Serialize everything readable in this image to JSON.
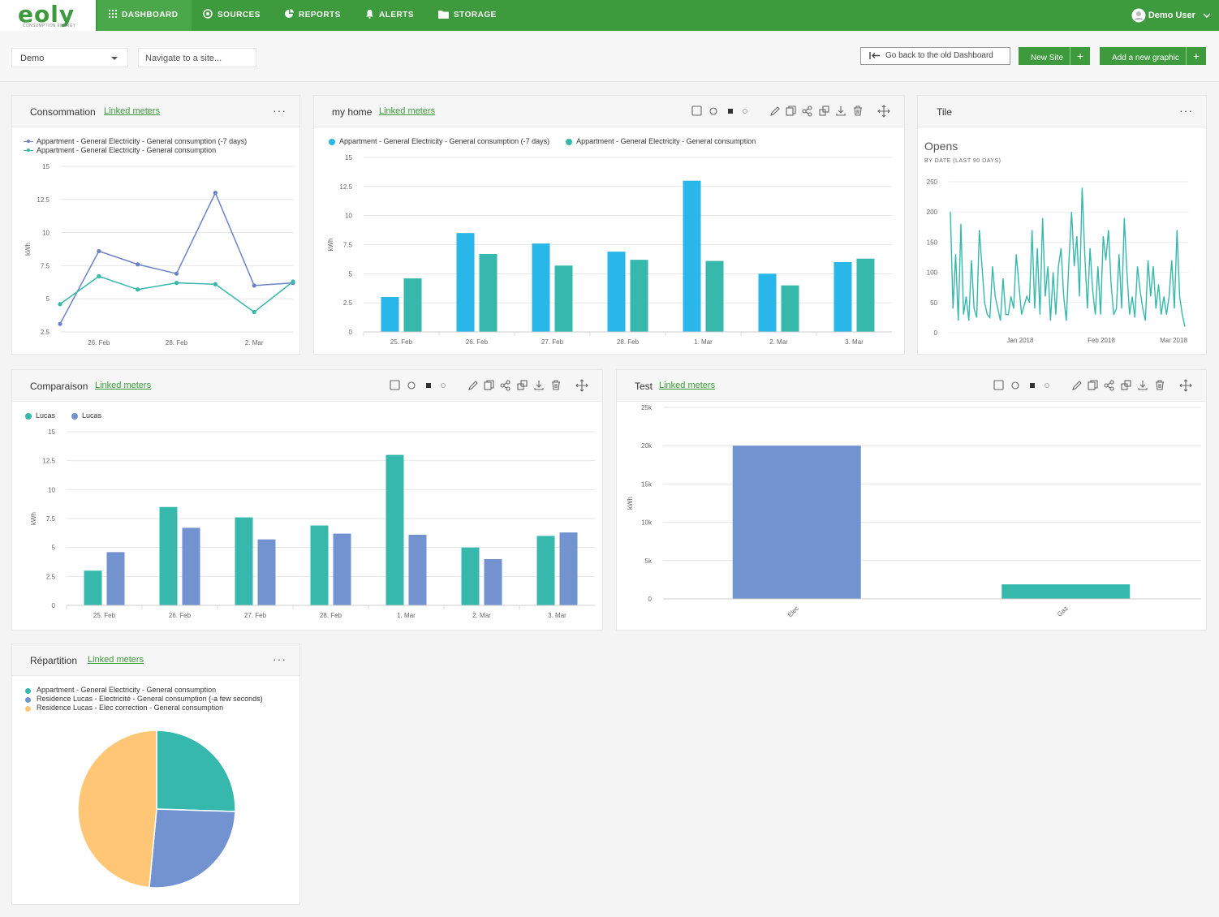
{
  "brand": {
    "logo": "eoly",
    "tagline": "CONSUMPTION ENERGY"
  },
  "nav": [
    {
      "label": "DASHBOARD",
      "icon": "grid-icon",
      "active": true
    },
    {
      "label": "SOURCES",
      "icon": "sources-icon"
    },
    {
      "label": "REPORTS",
      "icon": "reports-icon"
    },
    {
      "label": "ALERTS",
      "icon": "bell-icon"
    },
    {
      "label": "STORAGE",
      "icon": "folder-icon"
    }
  ],
  "user": {
    "name": "Demo User"
  },
  "toolbar": {
    "site_select": "Demo",
    "navigate_placeholder": "Navigate to a site...",
    "old_dashboard": "Go back to the old Dashboard",
    "new_site": "New Site",
    "add_graphic": "Add a new graphic",
    "plus": "+"
  },
  "colors": {
    "brand": "#3d9a3d",
    "blue": "#29b6e8",
    "teal": "#36b8ac",
    "indigo": "#6b82c8",
    "purple": "#7393d0",
    "peach": "#ffc676"
  },
  "cards": {
    "consommation": {
      "title": "Consommation",
      "link": "Linked meters",
      "more": "···"
    },
    "myhome": {
      "title": "my home",
      "link": "Linked meters"
    },
    "tile": {
      "title": "Tile",
      "more": "···",
      "big": "Opens",
      "sub": "BY DATE (LAST 90 DAYS)"
    },
    "comparaison": {
      "title": "Comparaison",
      "link": "Linked meters"
    },
    "test": {
      "title": "Test",
      "link": "Linked meters"
    },
    "repartition": {
      "title": "Répartition",
      "link": "Linked meters",
      "more": "···"
    }
  },
  "chart_data": [
    {
      "id": "consommation",
      "type": "line",
      "categories": [
        "25. Feb",
        "26. Feb",
        "27. Feb",
        "28. Feb",
        "1. Mar",
        "2. Mar",
        "3. Mar"
      ],
      "tick_labels": [
        "26. Feb",
        "28. Feb",
        "2. Mar"
      ],
      "series": [
        {
          "name": "Appartment - General Electricity - General consumption (-7 days)",
          "color": "#6b82c8",
          "values": [
            3.1,
            8.6,
            7.6,
            6.9,
            13.0,
            6.0,
            6.2
          ]
        },
        {
          "name": "Appartment - General Electricity - General consumption",
          "color": "#36b8ac",
          "values": [
            4.6,
            6.7,
            5.7,
            6.2,
            6.1,
            4.0,
            6.3
          ]
        }
      ],
      "ylabel": "kWh",
      "yticks": [
        "2.5",
        "5",
        "7.5",
        "10",
        "12.5",
        "15"
      ],
      "ylim": [
        2.5,
        15
      ]
    },
    {
      "id": "myhome",
      "type": "bar",
      "categories": [
        "25. Feb",
        "26. Feb",
        "27. Feb",
        "28. Feb",
        "1. Mar",
        "2. Mar",
        "3. Mar"
      ],
      "series": [
        {
          "name": "Appartment - General Electricity - General consumption (-7 days)",
          "color": "#29b6e8",
          "values": [
            3.0,
            8.5,
            7.6,
            6.9,
            13.0,
            5.0,
            6.0
          ]
        },
        {
          "name": "Appartment - General Electricity - General consumption",
          "color": "#36b8ac",
          "values": [
            4.6,
            6.7,
            5.7,
            6.2,
            6.1,
            4.0,
            6.3
          ]
        }
      ],
      "ylabel": "kWh",
      "yticks": [
        "0",
        "2.5",
        "5",
        "7.5",
        "10",
        "12.5",
        "15"
      ],
      "ylim": [
        0,
        15
      ]
    },
    {
      "id": "tile",
      "type": "line",
      "xticks": [
        "Jan 2018",
        "Feb 2018",
        "Mar 2018"
      ],
      "yticks": [
        "0",
        "50",
        "100",
        "150",
        "200",
        "250"
      ],
      "ylim": [
        0,
        250
      ],
      "series": [
        {
          "color": "#36b8ac",
          "values": [
            200,
            40,
            130,
            20,
            180,
            30,
            60,
            20,
            120,
            40,
            25,
            170,
            110,
            50,
            30,
            25,
            110,
            60,
            40,
            20,
            90,
            30,
            30,
            60,
            40,
            130,
            80,
            30,
            45,
            60,
            50,
            170,
            40,
            140,
            30,
            190,
            60,
            110,
            20,
            100,
            30,
            110,
            140,
            60,
            20,
            120,
            200,
            110,
            160,
            60,
            240,
            130,
            40,
            140,
            70,
            30,
            110,
            30,
            160,
            120,
            170,
            80,
            30,
            40,
            130,
            40,
            190,
            100,
            30,
            60,
            25,
            110,
            70,
            40,
            20,
            120,
            60,
            110,
            40,
            80,
            30,
            60,
            30,
            60,
            120,
            40,
            170,
            60,
            30,
            10
          ]
        }
      ]
    },
    {
      "id": "comparaison",
      "type": "bar",
      "categories": [
        "25. Feb",
        "26. Feb",
        "27. Feb",
        "28. Feb",
        "1. Mar",
        "2. Mar",
        "3. Mar"
      ],
      "series": [
        {
          "name": "Lucas",
          "color": "#36b8ac",
          "values": [
            3.0,
            8.5,
            7.6,
            6.9,
            13.0,
            5.0,
            6.0
          ]
        },
        {
          "name": "Lucas",
          "color": "#7393d0",
          "values": [
            4.6,
            6.7,
            5.7,
            6.2,
            6.1,
            4.0,
            6.3
          ]
        }
      ],
      "ylabel": "kWh",
      "yticks": [
        "0",
        "2.5",
        "5",
        "7.5",
        "10",
        "12.5",
        "15"
      ],
      "ylim": [
        0,
        15
      ]
    },
    {
      "id": "test",
      "type": "bar",
      "categories": [
        "Elec",
        "Gaz"
      ],
      "values": [
        20000,
        1900
      ],
      "colors": [
        "#7393d0",
        "#36b8ac"
      ],
      "ylabel": "kWh",
      "yticks": [
        "0",
        "5k",
        "10k",
        "15k",
        "20k",
        "25k"
      ],
      "ylim": [
        0,
        25000
      ]
    },
    {
      "id": "repartition",
      "type": "pie",
      "slices": [
        {
          "name": "Appartment - General Electricity - General consumption",
          "color": "#36b8ac",
          "value": 25.5
        },
        {
          "name": "Residence Lucas - Electricité - General consumption (-a few seconds)",
          "color": "#7393d0",
          "value": 26.0
        },
        {
          "name": "Residence Lucas - Elec correction - General consumption",
          "color": "#ffc676",
          "value": 48.5
        }
      ]
    }
  ]
}
